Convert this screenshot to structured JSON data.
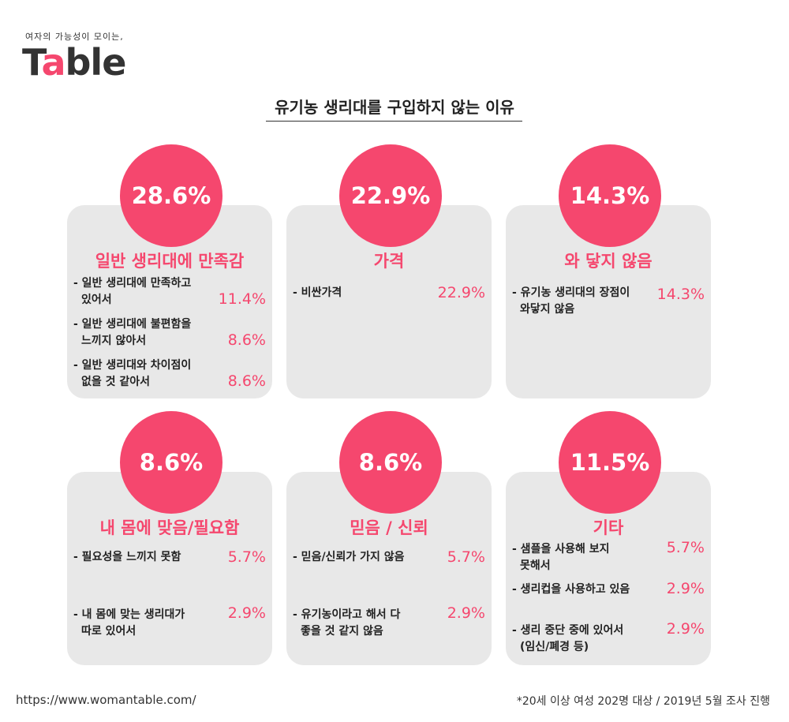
{
  "logo": {
    "tagline": "여자의 가능성이 모이는,",
    "brand_start": "T",
    "brand_accent": "a",
    "brand_end": "ble"
  },
  "title": "유기농 생리대를 구입하지 않는 이유",
  "cards": [
    {
      "percent": "28.6%",
      "heading": "일반 생리대에 만족감",
      "items": [
        {
          "lines": [
            "- 일반 생리대에 만족하고",
            "있어서"
          ],
          "value": "11.4%"
        },
        {
          "lines": [
            "- 일반 생리대에 불편함을",
            "느끼지 않아서"
          ],
          "value": "8.6%"
        },
        {
          "lines": [
            "- 일반 생리대와 차이점이",
            "없을 것 같아서"
          ],
          "value": "8.6%"
        }
      ]
    },
    {
      "percent": "22.9%",
      "heading": "가격",
      "items": [
        {
          "lines": [
            "- 비싼가격"
          ],
          "value": "22.9%"
        }
      ]
    },
    {
      "percent": "14.3%",
      "heading": "와 닿지 않음",
      "items": [
        {
          "lines": [
            "- 유기농 생리대의 장점이",
            "와닿지 않음"
          ],
          "value": "14.3%"
        }
      ]
    },
    {
      "percent": "8.6%",
      "heading": "내 몸에 맞음/필요함",
      "items": [
        {
          "lines": [
            "- 필요성을 느끼지 못함"
          ],
          "value": "5.7%"
        },
        {
          "lines": [
            "- 내 몸에 맞는 생리대가",
            "따로 있어서"
          ],
          "value": "2.9%"
        }
      ]
    },
    {
      "percent": "8.6%",
      "heading": "믿음 / 신뢰",
      "items": [
        {
          "lines": [
            "- 믿음/신뢰가 가지 않음"
          ],
          "value": "5.7%"
        },
        {
          "lines": [
            "- 유기농이라고 해서 다",
            "좋을 것 같지 않음"
          ],
          "value": "2.9%"
        }
      ]
    },
    {
      "percent": "11.5%",
      "heading": "기타",
      "items": [
        {
          "lines": [
            "- 샘플을 사용해 보지",
            "못해서"
          ],
          "value": "5.7%"
        },
        {
          "lines": [
            "- 생리컵을 사용하고 있음"
          ],
          "value": "2.9%"
        },
        {
          "lines": [
            "- 생리 중단 중에 있어서",
            "(임신/폐경 등)"
          ],
          "value": "2.9%"
        }
      ]
    }
  ],
  "footer": {
    "url": "https://www.womantable.com/",
    "note": "*20세 이상 여성 202명 대상 / 2019년 5월 조사 진행"
  }
}
